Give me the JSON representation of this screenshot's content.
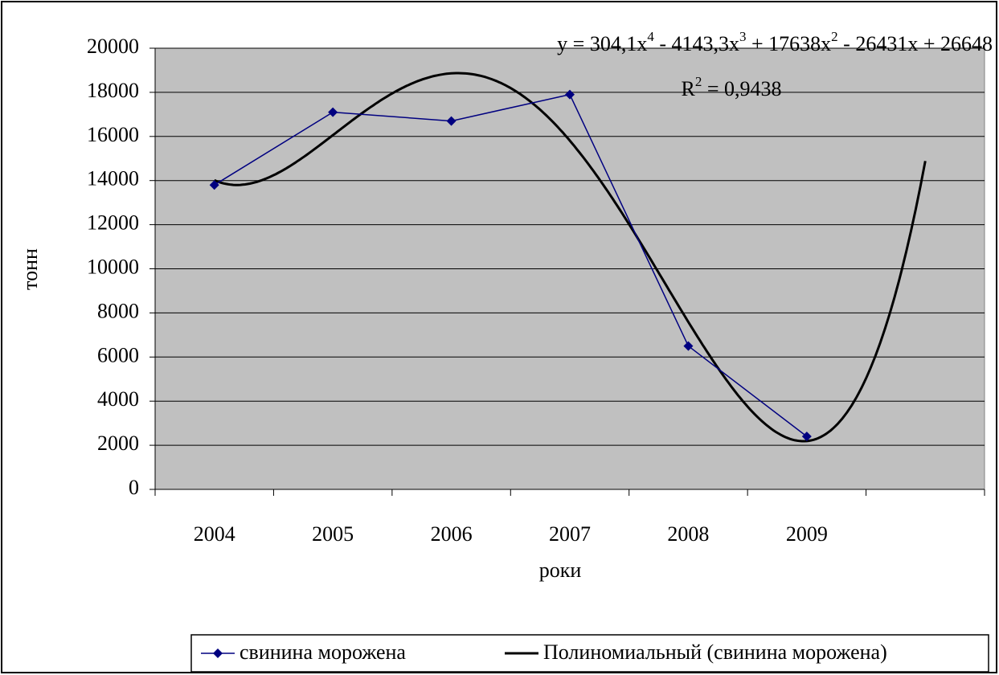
{
  "chart_data": {
    "type": "line",
    "x_label": "роки",
    "y_label": "тонн",
    "categories": [
      "2004",
      "2005",
      "2006",
      "2007",
      "2008",
      "2009",
      null
    ],
    "series": [
      {
        "name": "свинина морожена",
        "color": "#000080",
        "values": [
          13800,
          17100,
          16700,
          17900,
          6500,
          2400,
          null
        ]
      }
    ],
    "trendline": {
      "name": "Полиномиальный (свинина морожена)",
      "color": "#000000",
      "coefficients": [
        26648,
        -26431,
        17638,
        -4143.3,
        304.1
      ],
      "xlim": [
        1,
        7
      ]
    },
    "equation": [
      "y = 304,1x",
      "4",
      " - 4143,3x",
      "3",
      " + 17638x",
      "2",
      " - 26431x + 26648"
    ],
    "r_squared": [
      "R",
      "2",
      " = 0,9438"
    ],
    "ylim": [
      0,
      20000
    ],
    "yticks": [
      0,
      2000,
      4000,
      6000,
      8000,
      10000,
      12000,
      14000,
      16000,
      18000,
      20000
    ],
    "grid": true,
    "plot_background": "#c0c0c0",
    "legend": "bottom"
  }
}
